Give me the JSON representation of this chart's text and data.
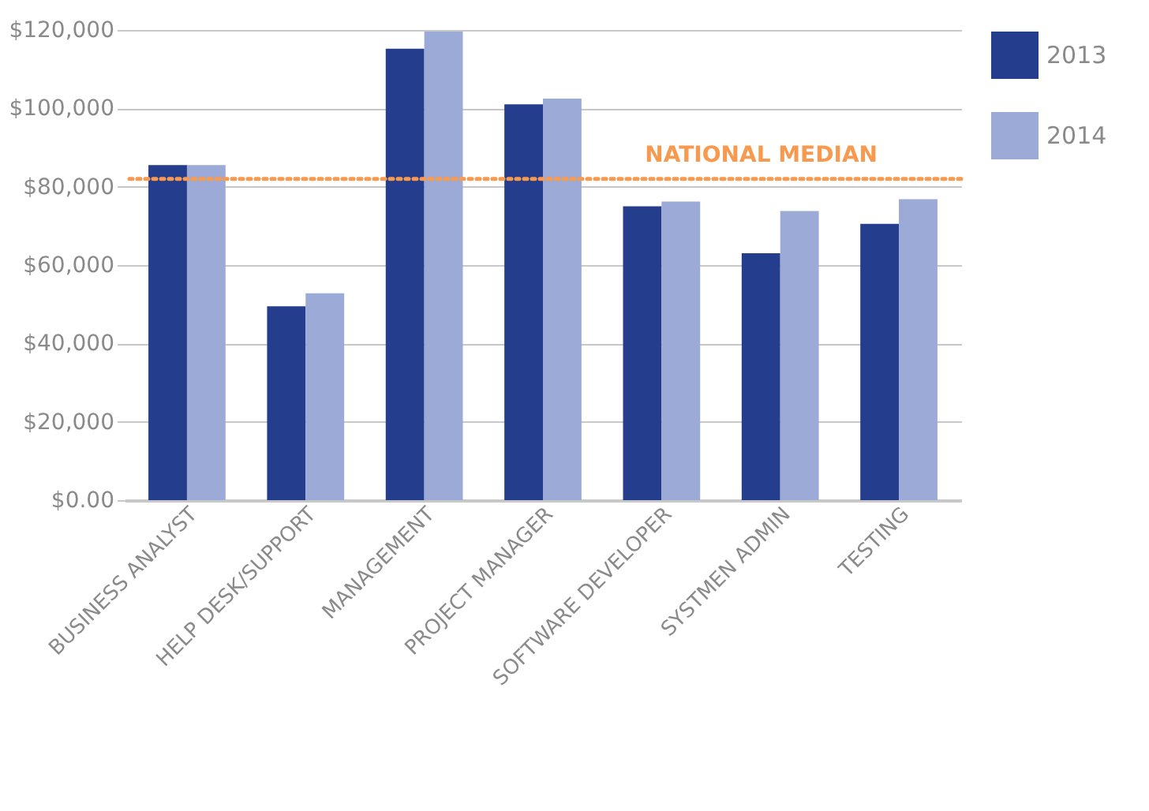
{
  "chart_data": {
    "type": "bar",
    "categories": [
      "BUSINESS ANALYST",
      "HELP DESK/SUPPORT",
      "MANAGEMENT",
      "PROJECT MANAGER",
      "SOFTWARE DEVELOPER",
      "SYSTMEN ADMIN",
      "TESTING"
    ],
    "series": [
      {
        "name": "2013",
        "color": "#243d8c",
        "values": [
          85500,
          49500,
          115200,
          101000,
          75000,
          63000,
          70500
        ]
      },
      {
        "name": "2014",
        "color": "#9baad6",
        "values": [
          85500,
          52800,
          119600,
          102500,
          76200,
          73800,
          76800
        ]
      }
    ],
    "ylim": [
      0,
      120000
    ],
    "yticks": [
      {
        "value": 0,
        "label": "$0.00"
      },
      {
        "value": 20000,
        "label": "$20,000"
      },
      {
        "value": 40000,
        "label": "$40,000"
      },
      {
        "value": 60000,
        "label": "$60,000"
      },
      {
        "value": 80000,
        "label": "$80,000"
      },
      {
        "value": 100000,
        "label": "$100,000"
      },
      {
        "value": 120000,
        "label": "$120,000"
      }
    ],
    "ref_lines": [
      {
        "axis": "y",
        "value": 82000,
        "label": "NATIONAL MEDIAN",
        "color": "#f79a4f",
        "line_style": "dotted"
      }
    ],
    "grid": "y",
    "legend": "right"
  }
}
